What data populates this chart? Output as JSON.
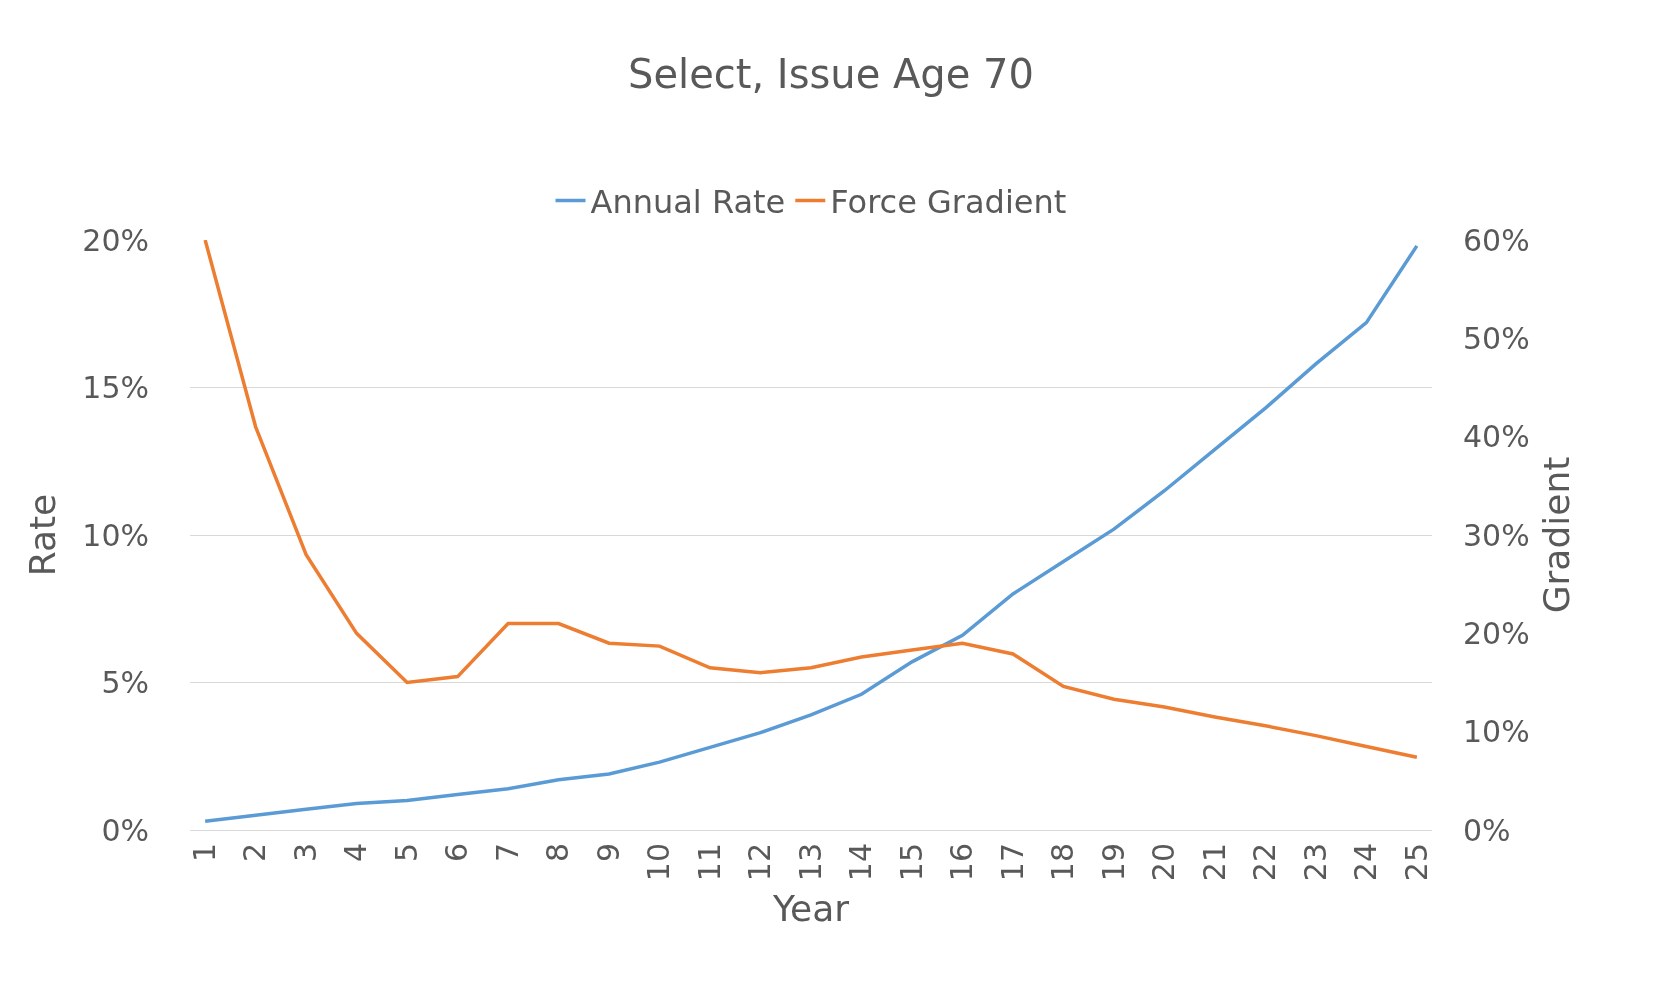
{
  "chart_data": {
    "type": "line",
    "title": "Select, Issue Age 70",
    "xlabel": "Year",
    "ylabel": "Rate",
    "y2label": "Gradient",
    "categories": [
      "1",
      "2",
      "3",
      "4",
      "5",
      "6",
      "7",
      "8",
      "9",
      "10",
      "11",
      "12",
      "13",
      "14",
      "15",
      "16",
      "17",
      "18",
      "19",
      "20",
      "21",
      "22",
      "23",
      "24",
      "25"
    ],
    "series": [
      {
        "name": "Annual Rate",
        "color": "#5b9bd5",
        "values": [
          0.3,
          0.5,
          0.7,
          0.9,
          1.0,
          1.2,
          1.4,
          1.7,
          1.9,
          2.3,
          2.8,
          3.3,
          3.9,
          4.6,
          5.7,
          6.6,
          8.0,
          9.1,
          10.2,
          11.5,
          12.9,
          14.3,
          15.8,
          17.2,
          19.8
        ]
      },
      {
        "name": "Force Gradient",
        "color": "#ed7d31",
        "axis": "y2",
        "values": [
          60,
          41,
          28,
          20,
          15,
          15.6,
          21,
          21,
          19,
          18.7,
          16.5,
          16,
          16.5,
          17.6,
          18.3,
          19,
          17.9,
          14.6,
          13.3,
          12.5,
          11.5,
          10.6,
          9.6,
          8.5,
          7.4
        ]
      }
    ],
    "ylim": [
      0,
      20
    ],
    "yticks": [
      {
        "value": 0,
        "label": "0%"
      },
      {
        "value": 5,
        "label": "5%"
      },
      {
        "value": 10,
        "label": "10%"
      },
      {
        "value": 15,
        "label": "15%"
      },
      {
        "value": 20,
        "label": "20%"
      }
    ],
    "y2lim": [
      0,
      60
    ],
    "y2ticks": [
      {
        "value": 0,
        "label": "0%"
      },
      {
        "value": 10,
        "label": "10%"
      },
      {
        "value": 20,
        "label": "20%"
      },
      {
        "value": 30,
        "label": "30%"
      },
      {
        "value": 40,
        "label": "40%"
      },
      {
        "value": 50,
        "label": "50%"
      },
      {
        "value": 60,
        "label": "60%"
      }
    ],
    "grid": "y",
    "legend": "top",
    "marker": "none",
    "line_style": "solid"
  }
}
